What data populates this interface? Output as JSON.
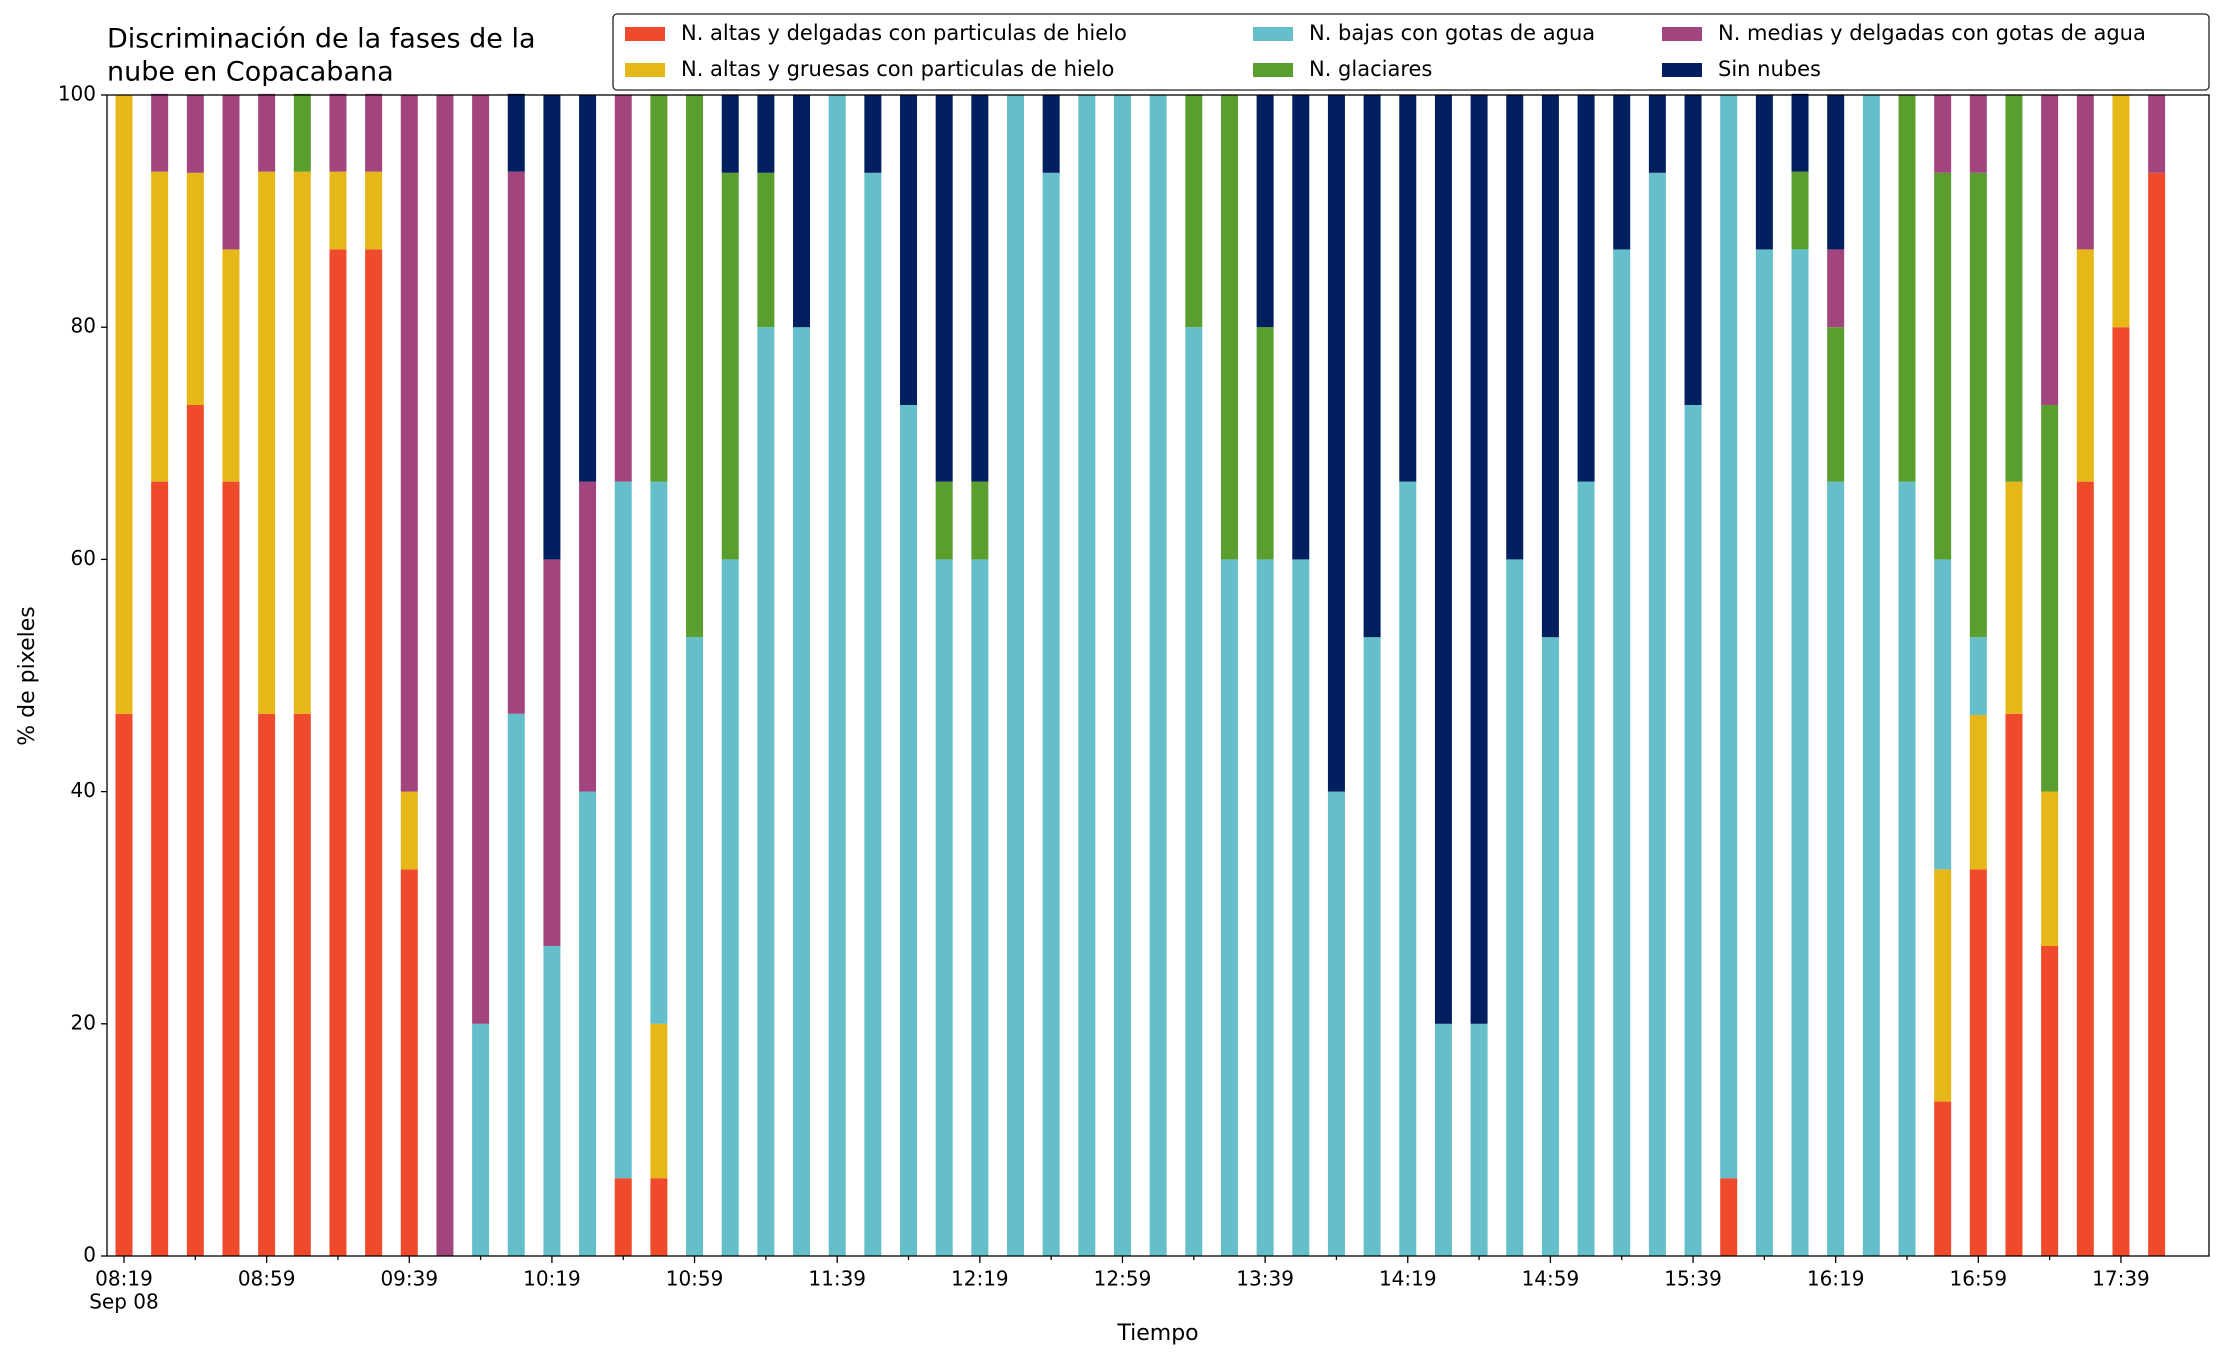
{
  "chart_data": {
    "type": "stacked_bar",
    "title": [
      "Discriminación de la fases de la",
      "nube en Copacabana"
    ],
    "xlabel": "Tiempo",
    "ylabel": "% de pixeles",
    "date_label": "Sep 08",
    "categories": [
      "08:19",
      null,
      null,
      null,
      "08:59",
      null,
      null,
      null,
      "09:39",
      null,
      null,
      null,
      "10:19",
      null,
      null,
      null,
      "10:59",
      null,
      null,
      null,
      "11:39",
      null,
      null,
      null,
      "12:19",
      null,
      null,
      null,
      "12:59",
      null,
      null,
      null,
      "13:39",
      null,
      null,
      null,
      "14:19",
      null,
      null,
      null,
      "14:59",
      null,
      null,
      null,
      "15:39",
      null,
      null,
      null,
      "16:19",
      null,
      null,
      null,
      "16:59",
      null,
      null,
      null,
      "17:39",
      null
    ],
    "ylim": [
      0,
      100
    ],
    "yticks": [
      0,
      20,
      40,
      60,
      80,
      100
    ],
    "legend": "upper right",
    "series": [
      {
        "name": "N. altas y delgadas con particulas de hielo",
        "color": "#ee4a2b",
        "values": [
          46.7,
          66.7,
          73.3,
          66.7,
          46.7,
          46.7,
          86.7,
          86.7,
          33.3,
          0,
          0,
          0,
          0,
          0,
          6.7,
          6.7,
          0,
          0,
          0,
          0,
          0,
          0,
          0,
          0,
          0,
          0,
          0,
          0,
          0,
          0,
          0,
          0,
          0,
          0,
          0,
          0,
          0,
          0,
          0,
          0,
          0,
          0,
          0,
          0,
          0,
          6.7,
          0,
          0,
          0,
          0,
          0,
          13.3,
          33.3,
          46.7,
          26.7,
          66.7,
          80,
          93.3
        ]
      },
      {
        "name": "N. altas y gruesas con particulas de hielo",
        "color": "#e6b719",
        "values": [
          53.3,
          26.7,
          20,
          20,
          46.7,
          46.7,
          6.7,
          6.7,
          6.7,
          0,
          0,
          0,
          0,
          0,
          0,
          13.3,
          0,
          0,
          0,
          0,
          0,
          0,
          0,
          0,
          0,
          0,
          0,
          0,
          0,
          0,
          0,
          0,
          0,
          0,
          0,
          0,
          0,
          0,
          0,
          0,
          0,
          0,
          0,
          0,
          0,
          0,
          0,
          0,
          0,
          0,
          0,
          20,
          13.3,
          20,
          13.3,
          20,
          20,
          0
        ]
      },
      {
        "name": "N. bajas con gotas de agua",
        "color": "#65bfca",
        "values": [
          0,
          0,
          0,
          0,
          0,
          0,
          0,
          0,
          0,
          0,
          20,
          46.7,
          26.7,
          40,
          60,
          46.7,
          53.3,
          60,
          80,
          80,
          100,
          93.3,
          73.3,
          60,
          60,
          100,
          93.3,
          100,
          100,
          100,
          80,
          60,
          60,
          60,
          40,
          53.3,
          66.7,
          20,
          20,
          60,
          53.3,
          66.7,
          86.7,
          93.3,
          73.3,
          93.3,
          86.7,
          86.7,
          66.7,
          100,
          66.7,
          26.7,
          6.7,
          0,
          0,
          0,
          0,
          0
        ]
      },
      {
        "name": "N. glaciares",
        "color": "#5a9e2f",
        "values": [
          0,
          0,
          0,
          0,
          0,
          6.7,
          0,
          0,
          0,
          0,
          0,
          0,
          0,
          0,
          0,
          33.3,
          46.7,
          33.3,
          13.3,
          0,
          0,
          0,
          0,
          6.7,
          6.7,
          0,
          0,
          0,
          0,
          0,
          20,
          40,
          20,
          0,
          0,
          0,
          0,
          0,
          0,
          0,
          0,
          0,
          0,
          0,
          0,
          0,
          0,
          6.7,
          13.3,
          0,
          33.3,
          33.3,
          40,
          33.3,
          33.3,
          0,
          0,
          0
        ]
      },
      {
        "name": "N. medias y delgadas con gotas de agua",
        "color": "#a2457e",
        "values": [
          0,
          6.7,
          6.7,
          13.3,
          6.7,
          0,
          6.7,
          6.7,
          60,
          100,
          80,
          46.7,
          33.3,
          26.7,
          33.3,
          0,
          0,
          0,
          0,
          0,
          0,
          0,
          0,
          0,
          0,
          0,
          0,
          0,
          0,
          0,
          0,
          0,
          0,
          0,
          0,
          0,
          0,
          0,
          0,
          0,
          0,
          0,
          0,
          0,
          0,
          0,
          0,
          0,
          6.7,
          0,
          0,
          6.7,
          6.7,
          0,
          26.7,
          13.3,
          0,
          6.7
        ]
      },
      {
        "name": "Sin nubes",
        "color": "#021f5f",
        "values": [
          0,
          0,
          0,
          0,
          0,
          0,
          0,
          0,
          0,
          0,
          0,
          6.7,
          40,
          33.3,
          0,
          0,
          0,
          6.7,
          6.7,
          20,
          0,
          6.7,
          26.7,
          33.3,
          33.3,
          0,
          6.7,
          0,
          0,
          0,
          0,
          0,
          20,
          40,
          60,
          46.7,
          33.3,
          80,
          80,
          40,
          46.7,
          33.3,
          13.3,
          6.7,
          26.7,
          0,
          13.3,
          6.7,
          13.3,
          0,
          0,
          0,
          0,
          0,
          0,
          0,
          0,
          0
        ]
      }
    ]
  }
}
